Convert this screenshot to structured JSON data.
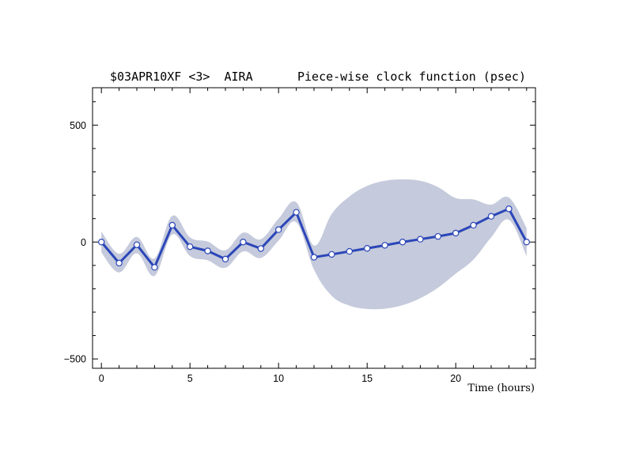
{
  "chart_data": {
    "type": "line",
    "title_left": "$03APR10XF <3>  AIRA",
    "title_right": "Piece-wise clock function (psec)",
    "xlabel": "Time (hours)",
    "ylabel": "",
    "xlim": [
      -0.5,
      24.5
    ],
    "ylim": [
      -540,
      660
    ],
    "x_ticks": [
      0,
      5,
      10,
      15,
      20
    ],
    "x_tick_labels": [
      "0",
      "5",
      "10",
      "15",
      "20"
    ],
    "y_ticks": [
      -500,
      0,
      500
    ],
    "y_tick_labels": [
      "−500",
      "0",
      "500"
    ],
    "grid": false,
    "colors": {
      "line": "#2b46b8",
      "band": "#c5cadc",
      "marker_fill": "#ffffff"
    },
    "series": [
      {
        "x": [
          0,
          1,
          2,
          3,
          4,
          5,
          6,
          7,
          8,
          9,
          10,
          11,
          12,
          13,
          14,
          15,
          16,
          17,
          18,
          19,
          20,
          21,
          22,
          23,
          24
        ],
        "values": [
          0,
          -90,
          -12,
          -108,
          72,
          -20,
          -38,
          -73,
          0,
          -28,
          53,
          127,
          -65,
          -53,
          -40,
          -27,
          -14,
          0,
          12,
          24,
          38,
          72,
          110,
          142,
          0
        ]
      }
    ],
    "uncertainty_band": {
      "x": [
        0,
        1,
        2,
        3,
        4,
        5,
        6,
        7,
        8,
        9,
        10,
        11,
        12,
        13,
        14,
        15,
        16,
        17,
        18,
        19,
        20,
        21,
        22,
        23,
        24
      ],
      "upper": [
        45,
        -50,
        22,
        -70,
        112,
        20,
        2,
        -35,
        40,
        12,
        100,
        170,
        -15,
        120,
        195,
        240,
        262,
        268,
        262,
        235,
        188,
        182,
        160,
        190,
        60
      ],
      "lower": [
        -45,
        -130,
        -48,
        -145,
        32,
        -60,
        -78,
        -110,
        -40,
        -68,
        6,
        84,
        -118,
        -230,
        -272,
        -286,
        -285,
        -270,
        -240,
        -195,
        -135,
        -75,
        20,
        95,
        -60
      ]
    }
  }
}
